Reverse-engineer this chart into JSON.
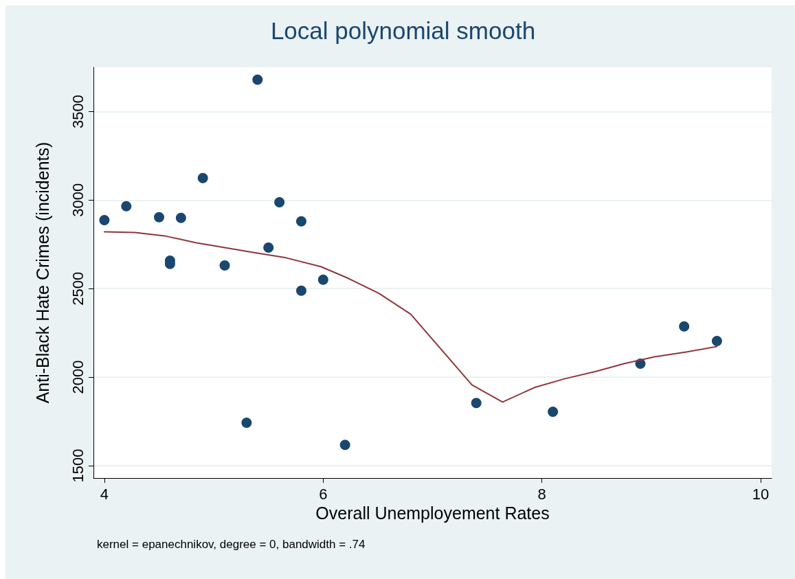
{
  "chart_data": {
    "type": "scatter",
    "title": "Local polynomial smooth",
    "xlabel": "Overall Unemployement Rates",
    "ylabel": "Anti-Black Hate Crimes (incidents)",
    "annotations": [
      "kernel = epanechnikov, degree = 0, bandwidth = .74"
    ],
    "xlim": [
      3.9,
      10.1
    ],
    "xticks": [
      4,
      6,
      8,
      10
    ],
    "ylim": [
      1430,
      3750
    ],
    "yticks": [
      1500,
      2000,
      2500,
      3000,
      3500
    ],
    "grid": "y",
    "marker": "circle",
    "series": [
      {
        "color": "#1a476f",
        "x": [
          4.0,
          4.2,
          4.5,
          4.7,
          4.6,
          4.6,
          4.9,
          5.1,
          5.3,
          5.4,
          5.5,
          5.6,
          5.8,
          5.8,
          6.0,
          6.2,
          7.4,
          8.1,
          8.9,
          9.3,
          9.6
        ],
        "values": [
          2887,
          2965,
          2903,
          2899,
          2658,
          2639,
          3124,
          2631,
          1742,
          3680,
          2732,
          2988,
          2880,
          2488,
          2550,
          1617,
          1854,
          1804,
          2076,
          2286,
          2204
        ]
      },
      {
        "type": "line",
        "color": "#90353b",
        "marker": "none",
        "line_style": "solid",
        "x": [
          4.0,
          4.28,
          4.55,
          4.84,
          5.35,
          5.66,
          5.98,
          6.23,
          6.51,
          6.8,
          7.36,
          7.64,
          7.93,
          8.21,
          8.5,
          8.75,
          9.03,
          9.32,
          9.6
        ],
        "values": [
          2821,
          2817,
          2798,
          2759,
          2705,
          2674,
          2624,
          2558,
          2473,
          2356,
          1956,
          1859,
          1941,
          1991,
          2033,
          2076,
          2115,
          2142,
          2173
        ]
      }
    ]
  }
}
